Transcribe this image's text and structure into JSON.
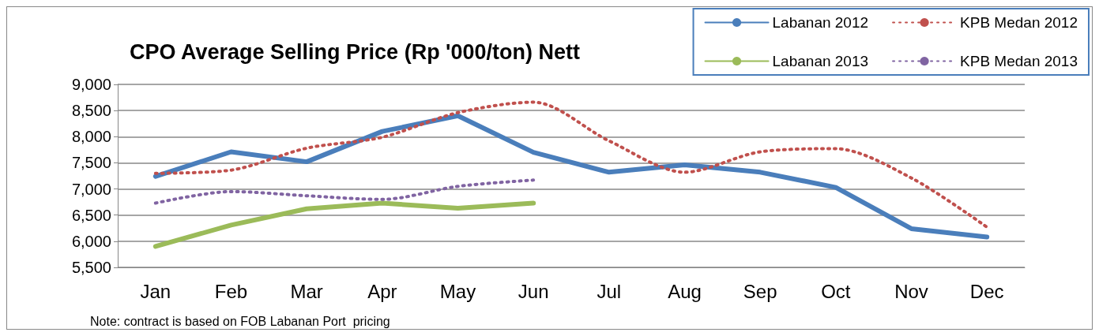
{
  "chart_data": {
    "type": "line",
    "title": "CPO Average Selling Price (Rp '000/ton) Nett",
    "categories": [
      "Jan",
      "Feb",
      "Mar",
      "Apr",
      "May",
      "Jun",
      "Jul",
      "Aug",
      "Sep",
      "Oct",
      "Nov",
      "Dec"
    ],
    "series": [
      {
        "name": "Labanan 2012",
        "color": "#4a7ebb",
        "line_style": "solid",
        "values": [
          7240,
          7710,
          7520,
          8100,
          8400,
          7700,
          7320,
          7460,
          7320,
          7030,
          6240,
          6080
        ]
      },
      {
        "name": "KPB Medan 2012",
        "color": "#c0504d",
        "line_style": "dotted",
        "values": [
          7300,
          7360,
          7780,
          7990,
          8460,
          8660,
          7920,
          7320,
          7710,
          7770,
          7210,
          6270
        ]
      },
      {
        "name": "Labanan 2013",
        "color": "#9bbb59",
        "line_style": "solid",
        "values": [
          5900,
          6310,
          6620,
          6730,
          6630,
          6730,
          null,
          null,
          null,
          null,
          null,
          null
        ]
      },
      {
        "name": "KPB Medan 2013",
        "color": "#8064a2",
        "line_style": "dotted",
        "values": [
          6730,
          6950,
          6870,
          6800,
          7050,
          7170,
          null,
          null,
          null,
          null,
          null,
          null
        ]
      }
    ],
    "ylim": [
      5500,
      9000
    ],
    "yticks": [
      {
        "value": 5500,
        "label": "5,500"
      },
      {
        "value": 6000,
        "label": "6,000"
      },
      {
        "value": 6500,
        "label": "6,500"
      },
      {
        "value": 7000,
        "label": "7,000"
      },
      {
        "value": 7500,
        "label": "7,500"
      },
      {
        "value": 8000,
        "label": "8,000"
      },
      {
        "value": 8500,
        "label": "8,500"
      },
      {
        "value": 9000,
        "label": "9,000"
      }
    ],
    "grid": "y",
    "legend": "top right",
    "marker": "none",
    "annotations": [
      "Note: contract is based on FOB Labanan Port  pricing"
    ]
  }
}
